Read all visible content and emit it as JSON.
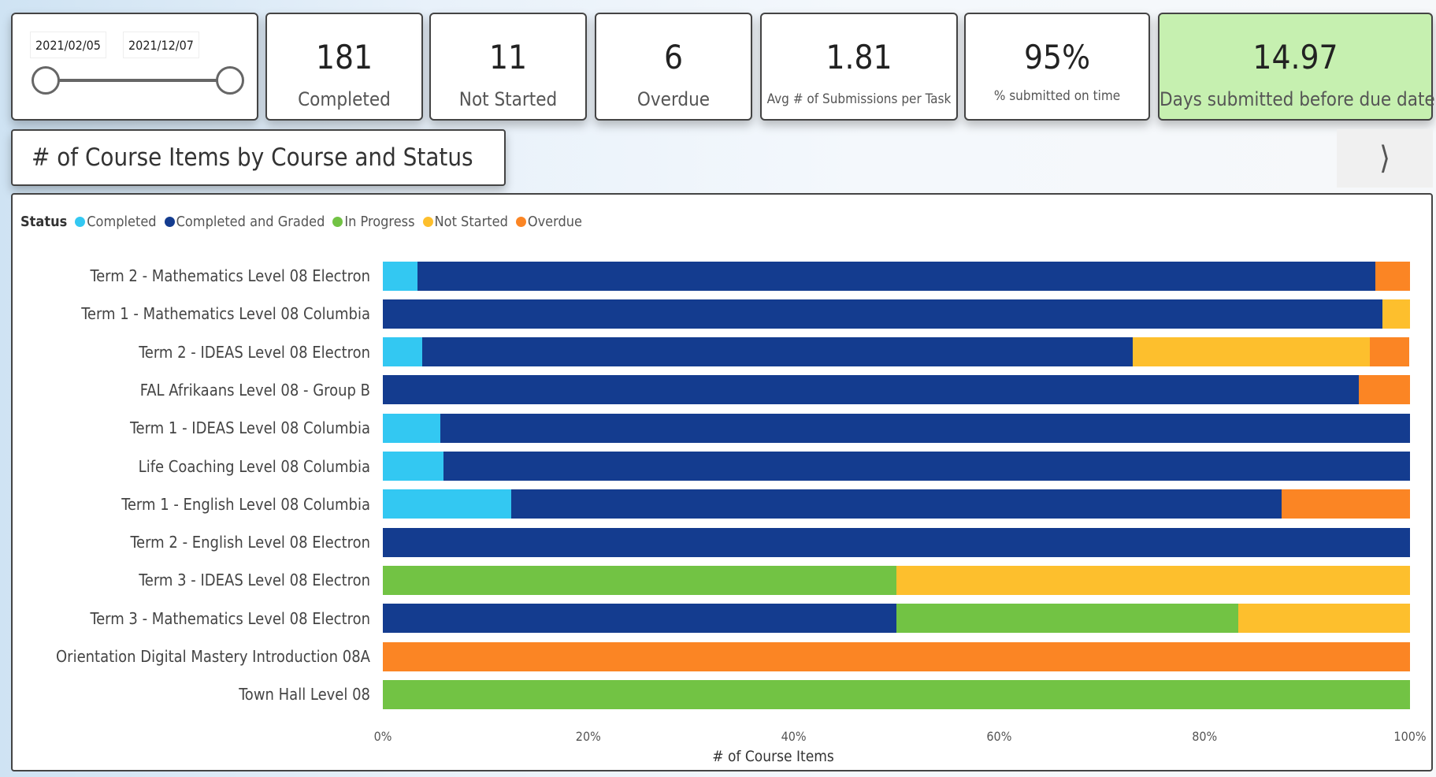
{
  "slider": {
    "start": "2021/02/05",
    "end": "2021/12/07"
  },
  "kpis": [
    {
      "value": "181",
      "label": "Completed"
    },
    {
      "value": "11",
      "label": "Not Started"
    },
    {
      "value": "6",
      "label": "Overdue"
    },
    {
      "value": "1.81",
      "label": "Avg # of Submissions per Task"
    },
    {
      "value": "95%",
      "label": "% submitted on time"
    },
    {
      "value": "14.97",
      "label": "Days submitted before due date",
      "background": "#c6f0b0"
    }
  ],
  "chart_title": "# of Course Items by Course and Status",
  "next_button_icon": "chevron-right-icon",
  "chart_data": {
    "type": "bar",
    "orientation": "horizontal",
    "stacked": "100%",
    "legend_title": "Status",
    "legend_position": "top-left",
    "xlabel": "# of Course Items",
    "xticks": [
      "0%",
      "20%",
      "40%",
      "60%",
      "80%",
      "100%"
    ],
    "xlim": [
      0,
      100
    ],
    "categories": [
      "Term 2 - Mathematics Level 08 Electron",
      "Term 1 - Mathematics Level 08 Columbia",
      "Term 2 - IDEAS Level 08 Electron",
      "FAL Afrikaans Level 08 - Group B",
      "Term 1 - IDEAS Level 08 Columbia",
      "Life Coaching Level 08 Columbia",
      "Term 1 - English Level 08 Columbia",
      "Term 2 - English Level 08 Electron",
      "Term 3 - IDEAS Level 08 Electron",
      "Term 3 - Mathematics Level 08 Electron",
      "Orientation Digital Mastery Introduction 08A",
      "Town Hall Level 08"
    ],
    "series": [
      {
        "name": "Completed",
        "color": "#33c8f2",
        "values": [
          3.4,
          0,
          3.8,
          0,
          5.6,
          5.9,
          12.5,
          0,
          0,
          0,
          0,
          0
        ]
      },
      {
        "name": "Completed and Graded",
        "color": "#143c8f",
        "values": [
          93.2,
          97.3,
          69.2,
          95,
          94.4,
          94.1,
          75,
          100,
          0,
          50,
          0,
          0
        ]
      },
      {
        "name": "In Progress",
        "color": "#72c344",
        "values": [
          0,
          0,
          0,
          0,
          0,
          0,
          0,
          0,
          50,
          33.3,
          0,
          100
        ]
      },
      {
        "name": "Not Started",
        "color": "#fdbf2d",
        "values": [
          0,
          2.7,
          23.1,
          0,
          0,
          0,
          0,
          0,
          50,
          16.7,
          0,
          0
        ]
      },
      {
        "name": "Overdue",
        "color": "#fb8524",
        "values": [
          3.4,
          0,
          3.8,
          5,
          0,
          0,
          12.5,
          0,
          0,
          0,
          100,
          0
        ]
      }
    ]
  }
}
